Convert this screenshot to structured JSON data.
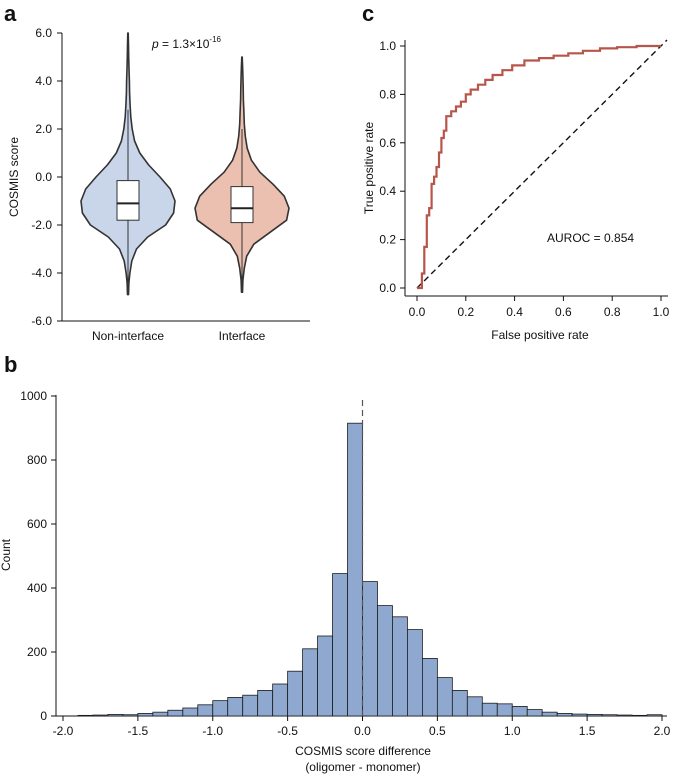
{
  "colors": {
    "violin_noninterface": "#c9d5e9",
    "violin_interface": "#ecc0b0",
    "roc_line": "#b8554a",
    "hist_bar": "#8ea8d0",
    "hist_edge": "#1c1c1c",
    "diagonal": "#111111"
  },
  "chart_data": [
    {
      "id": "a",
      "panel_label": "a",
      "type": "violin",
      "ylabel": "COSMIS score",
      "ylim": [
        -6,
        6
      ],
      "yticks": [
        "6.0",
        "4.0",
        "2.0",
        "0.0",
        "-2.0",
        "-4.0",
        "-6.0"
      ],
      "ytick_values": [
        6,
        4,
        2,
        0,
        -2,
        -4,
        -6
      ],
      "annotation_p": "p",
      "annotation_rest": " = 1.3×10",
      "annotation_exp": "-16",
      "categories": [
        "Non-interface",
        "Interface"
      ],
      "groups": [
        {
          "name": "Non-interface",
          "min": -4.9,
          "max": 6.0,
          "q1": -1.8,
          "median": -1.1,
          "q3": -0.15,
          "whisker_low": -4.7,
          "whisker_high": 2.8,
          "density": [
            [
              -4.9,
              0.01
            ],
            [
              -4.4,
              0.02
            ],
            [
              -4.0,
              0.04
            ],
            [
              -3.5,
              0.08
            ],
            [
              -3.0,
              0.18
            ],
            [
              -2.5,
              0.42
            ],
            [
              -2.0,
              0.8
            ],
            [
              -1.5,
              0.97
            ],
            [
              -1.0,
              1.0
            ],
            [
              -0.5,
              0.9
            ],
            [
              0.0,
              0.68
            ],
            [
              0.5,
              0.44
            ],
            [
              1.0,
              0.25
            ],
            [
              1.5,
              0.14
            ],
            [
              2.0,
              0.09
            ],
            [
              2.5,
              0.06
            ],
            [
              3.0,
              0.045
            ],
            [
              3.5,
              0.035
            ],
            [
              4.0,
              0.03
            ],
            [
              4.5,
              0.022
            ],
            [
              5.0,
              0.015
            ],
            [
              5.5,
              0.01
            ],
            [
              6.0,
              0.004
            ]
          ]
        },
        {
          "name": "Interface",
          "min": -4.8,
          "max": 5.0,
          "q1": -1.9,
          "median": -1.3,
          "q3": -0.4,
          "whisker_low": -4.5,
          "whisker_high": 2.0,
          "density": [
            [
              -4.8,
              0.01
            ],
            [
              -4.3,
              0.02
            ],
            [
              -3.8,
              0.05
            ],
            [
              -3.3,
              0.1
            ],
            [
              -2.8,
              0.25
            ],
            [
              -2.3,
              0.6
            ],
            [
              -1.8,
              0.95
            ],
            [
              -1.3,
              1.0
            ],
            [
              -0.8,
              0.9
            ],
            [
              -0.3,
              0.66
            ],
            [
              0.2,
              0.38
            ],
            [
              0.7,
              0.2
            ],
            [
              1.2,
              0.11
            ],
            [
              1.7,
              0.07
            ],
            [
              2.2,
              0.05
            ],
            [
              2.7,
              0.04
            ],
            [
              3.2,
              0.03
            ],
            [
              3.7,
              0.025
            ],
            [
              4.2,
              0.02
            ],
            [
              4.6,
              0.012
            ],
            [
              5.0,
              0.004
            ]
          ]
        }
      ]
    },
    {
      "id": "c",
      "panel_label": "c",
      "type": "line",
      "xlabel": "False positive rate",
      "ylabel": "True positive rate",
      "xlim": [
        0,
        1
      ],
      "ylim": [
        0,
        1
      ],
      "xticks": [
        "0.0",
        "0.2",
        "0.4",
        "0.6",
        "0.8",
        "1.0"
      ],
      "yticks": [
        "0.0",
        "0.2",
        "0.4",
        "0.6",
        "0.8",
        "1.0"
      ],
      "tick_values": [
        0,
        0.2,
        0.4,
        0.6,
        0.8,
        1.0
      ],
      "annotation": "AUROC = 0.854",
      "series": [
        {
          "name": "ROC",
          "x": [
            0.0,
            0.02,
            0.02,
            0.03,
            0.03,
            0.04,
            0.04,
            0.05,
            0.05,
            0.06,
            0.06,
            0.07,
            0.07,
            0.08,
            0.08,
            0.09,
            0.09,
            0.1,
            0.1,
            0.11,
            0.11,
            0.12,
            0.12,
            0.14,
            0.14,
            0.16,
            0.16,
            0.18,
            0.18,
            0.2,
            0.2,
            0.22,
            0.22,
            0.25,
            0.25,
            0.28,
            0.28,
            0.31,
            0.31,
            0.35,
            0.35,
            0.39,
            0.39,
            0.44,
            0.44,
            0.5,
            0.5,
            0.56,
            0.56,
            0.62,
            0.62,
            0.68,
            0.68,
            0.75,
            0.75,
            0.82,
            0.82,
            0.9,
            0.9,
            1.0
          ],
          "y": [
            0.0,
            0.0,
            0.06,
            0.06,
            0.17,
            0.17,
            0.3,
            0.3,
            0.33,
            0.33,
            0.43,
            0.43,
            0.46,
            0.46,
            0.5,
            0.5,
            0.56,
            0.56,
            0.62,
            0.62,
            0.65,
            0.65,
            0.71,
            0.71,
            0.73,
            0.73,
            0.75,
            0.75,
            0.77,
            0.77,
            0.8,
            0.8,
            0.82,
            0.82,
            0.84,
            0.84,
            0.86,
            0.86,
            0.88,
            0.88,
            0.9,
            0.9,
            0.92,
            0.92,
            0.94,
            0.94,
            0.95,
            0.95,
            0.96,
            0.96,
            0.97,
            0.97,
            0.98,
            0.98,
            0.99,
            0.99,
            0.995,
            0.995,
            1.0,
            1.0
          ]
        },
        {
          "name": "chance",
          "x": [
            0,
            1
          ],
          "y": [
            0,
            1
          ],
          "style": "dashed"
        }
      ]
    },
    {
      "id": "b",
      "panel_label": "b",
      "type": "bar",
      "xlabel_line1": "COSMIS score difference",
      "xlabel_line2": "(oligomer - monomer)",
      "ylabel": "Count",
      "xlim": [
        -2.0,
        2.0
      ],
      "ylim": [
        0,
        1000
      ],
      "xticks": [
        "-2.0",
        "-1.5",
        "-1.0",
        "-0.5",
        "0.0",
        "0.5",
        "1.0",
        "1.5",
        "2.0"
      ],
      "xtick_values": [
        -2.0,
        -1.5,
        -1.0,
        -0.5,
        0.0,
        0.5,
        1.0,
        1.5,
        2.0
      ],
      "yticks": [
        "0",
        "200",
        "400",
        "600",
        "800",
        "1000"
      ],
      "ytick_values": [
        0,
        200,
        400,
        600,
        800,
        1000
      ],
      "reference_line_x": 0.0,
      "bin_width": 0.1,
      "bin_starts": [
        -1.9,
        -1.8,
        -1.7,
        -1.6,
        -1.5,
        -1.4,
        -1.3,
        -1.2,
        -1.1,
        -1.0,
        -0.9,
        -0.8,
        -0.7,
        -0.6,
        -0.5,
        -0.4,
        -0.3,
        -0.2,
        -0.1,
        0.0,
        0.1,
        0.2,
        0.3,
        0.4,
        0.5,
        0.6,
        0.7,
        0.8,
        0.9,
        1.0,
        1.1,
        1.2,
        1.3,
        1.4,
        1.5,
        1.6,
        1.7,
        1.8,
        1.9
      ],
      "values": [
        2,
        3,
        5,
        4,
        8,
        12,
        18,
        25,
        35,
        48,
        58,
        65,
        80,
        100,
        140,
        210,
        250,
        445,
        915,
        420,
        345,
        310,
        270,
        180,
        120,
        80,
        60,
        40,
        38,
        30,
        20,
        12,
        8,
        6,
        5,
        4,
        3,
        2,
        4
      ]
    }
  ]
}
